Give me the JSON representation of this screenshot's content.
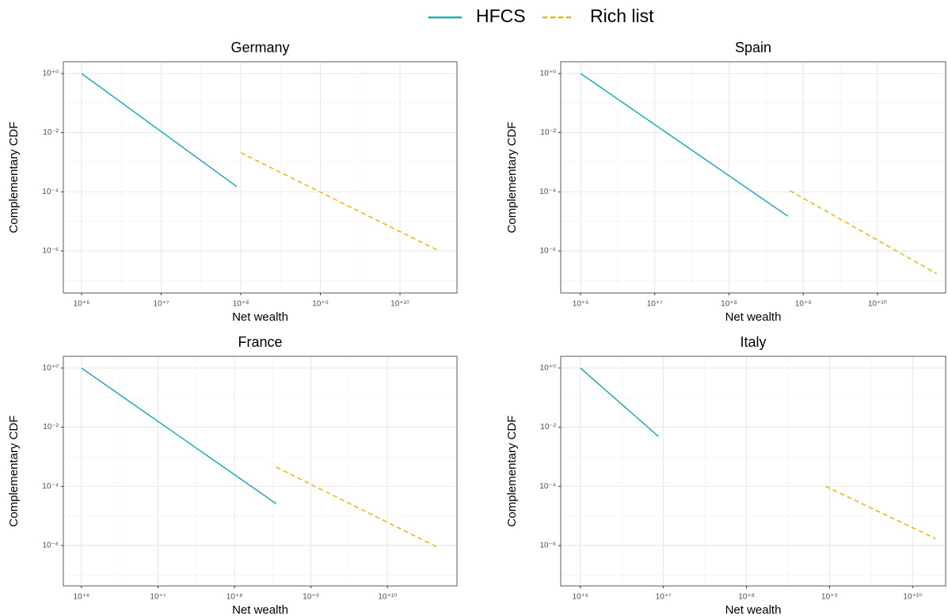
{
  "chart_data": [
    {
      "type": "line",
      "title": "Germany",
      "xlabel": "Net wealth",
      "ylabel": "Complementary CDF",
      "xscale": "log",
      "yscale": "log",
      "grid": true,
      "xlim": [
        590000,
        52000000000
      ],
      "ylim": [
        3.8e-08,
        2.5
      ],
      "xticks": [
        {
          "value": 1000000,
          "label": "10⁺⁶"
        },
        {
          "value": 10000000,
          "label": "10⁺⁷"
        },
        {
          "value": 100000000,
          "label": "10⁺⁸"
        },
        {
          "value": 1000000000,
          "label": "10⁺⁹"
        },
        {
          "value": 10000000000,
          "label": "10⁺¹⁰"
        }
      ],
      "yticks": [
        {
          "value": 1,
          "label": "10⁺⁰"
        },
        {
          "value": 0.01,
          "label": "10⁻²"
        },
        {
          "value": 0.0001,
          "label": "10⁻⁴"
        },
        {
          "value": 1e-06,
          "label": "10⁻⁶"
        }
      ],
      "series": [
        {
          "name": "HFCS",
          "color": "#1aadb8",
          "linestyle": "solid",
          "x": [
            1000000,
            89000000
          ],
          "values": [
            1,
            0.00015
          ]
        },
        {
          "name": "Rich list",
          "color": "#e7b800",
          "linestyle": "dashed",
          "x": [
            100000000,
            31000000000
          ],
          "values": [
            0.0021,
            1e-06
          ]
        }
      ]
    },
    {
      "type": "line",
      "title": "Spain",
      "xlabel": "Net wealth",
      "ylabel": "Complementary CDF",
      "xscale": "log",
      "yscale": "log",
      "grid": true,
      "xlim": [
        540000,
        83000000000
      ],
      "ylim": [
        3.8e-08,
        2.5
      ],
      "xticks": [
        {
          "value": 1000000,
          "label": "10⁺⁶"
        },
        {
          "value": 10000000,
          "label": "10⁺⁷"
        },
        {
          "value": 100000000,
          "label": "10⁺⁸"
        },
        {
          "value": 1000000000,
          "label": "10⁺⁹"
        },
        {
          "value": 10000000000,
          "label": "10⁺¹⁰"
        }
      ],
      "yticks": [
        {
          "value": 1,
          "label": "10⁺⁰"
        },
        {
          "value": 0.01,
          "label": "10⁻²"
        },
        {
          "value": 0.0001,
          "label": "10⁻⁴"
        },
        {
          "value": 1e-06,
          "label": "10⁻⁶"
        }
      ],
      "series": [
        {
          "name": "HFCS",
          "color": "#1aadb8",
          "linestyle": "solid",
          "x": [
            1000000,
            620000000
          ],
          "values": [
            1,
            1.5e-05
          ]
        },
        {
          "name": "Rich list",
          "color": "#e7b800",
          "linestyle": "dashed",
          "x": [
            660000000,
            63000000000
          ],
          "values": [
            0.00011,
            1.7e-07
          ]
        }
      ]
    },
    {
      "type": "line",
      "title": "France",
      "xlabel": "Net wealth",
      "ylabel": "Complementary CDF",
      "xscale": "log",
      "yscale": "log",
      "grid": true,
      "xlim": [
        580000,
        81000000000
      ],
      "ylim": [
        4.3e-08,
        2.5
      ],
      "xticks": [
        {
          "value": 1000000,
          "label": "10⁺⁶"
        },
        {
          "value": 10000000,
          "label": "10⁺⁷"
        },
        {
          "value": 100000000,
          "label": "10⁺⁸"
        },
        {
          "value": 1000000000,
          "label": "10⁺⁹"
        },
        {
          "value": 10000000000,
          "label": "10⁺¹⁰"
        }
      ],
      "yticks": [
        {
          "value": 1,
          "label": "10⁺⁰"
        },
        {
          "value": 0.01,
          "label": "10⁻²"
        },
        {
          "value": 0.0001,
          "label": "10⁻⁴"
        },
        {
          "value": 1e-06,
          "label": "10⁻⁶"
        }
      ],
      "series": [
        {
          "name": "HFCS",
          "color": "#1aadb8",
          "linestyle": "solid",
          "x": [
            1000000,
            350000000
          ],
          "values": [
            1,
            2.6e-05
          ]
        },
        {
          "name": "Rich list",
          "color": "#e7b800",
          "linestyle": "dashed",
          "x": [
            350000000,
            47000000000
          ],
          "values": [
            0.00045,
            8.3e-07
          ]
        }
      ]
    },
    {
      "type": "line",
      "title": "Italy",
      "xlabel": "Net wealth",
      "ylabel": "Complementary CDF",
      "xscale": "log",
      "yscale": "log",
      "grid": true,
      "xlim": [
        580000,
        25000000000
      ],
      "ylim": [
        4.3e-08,
        2.5
      ],
      "xticks": [
        {
          "value": 1000000,
          "label": "10⁺⁶"
        },
        {
          "value": 10000000,
          "label": "10⁺⁷"
        },
        {
          "value": 100000000,
          "label": "10⁺⁸"
        },
        {
          "value": 1000000000,
          "label": "10⁺⁹"
        },
        {
          "value": 10000000000,
          "label": "10⁺¹⁰"
        }
      ],
      "yticks": [
        {
          "value": 1,
          "label": "10⁺⁰"
        },
        {
          "value": 0.01,
          "label": "10⁻²"
        },
        {
          "value": 0.0001,
          "label": "10⁻⁴"
        },
        {
          "value": 1e-06,
          "label": "10⁻⁶"
        }
      ],
      "series": [
        {
          "name": "HFCS",
          "color": "#1aadb8",
          "linestyle": "solid",
          "x": [
            1000000,
            8700000
          ],
          "values": [
            1,
            0.0049
          ]
        },
        {
          "name": "Rich list",
          "color": "#e7b800",
          "linestyle": "dashed",
          "x": [
            900000000,
            19000000000
          ],
          "values": [
            0.0001,
            1.7e-06
          ]
        }
      ]
    }
  ]
}
